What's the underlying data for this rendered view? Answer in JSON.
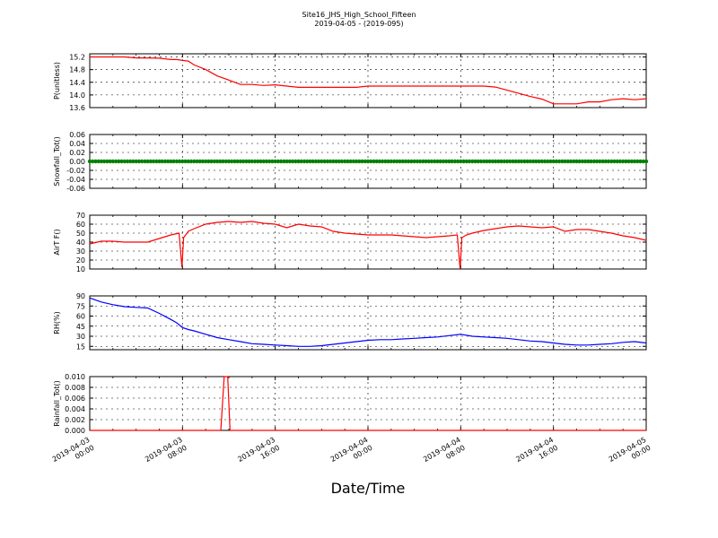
{
  "figure": {
    "title": "Site16_JHS_High_School_Fifteen",
    "subtitle": "2019-04-05 - (2019-095)",
    "xlabel": "Date/Time",
    "x_ticks": [
      "2019-04-03\n00:00",
      "2019-04-03\n08:00",
      "2019-04-03\n16:00",
      "2019-04-04\n00:00",
      "2019-04-04\n08:00",
      "2019-04-04\n16:00",
      "2019-04-05\n00:00"
    ]
  },
  "chart_data": [
    {
      "type": "line",
      "ylabel": "P(unitless)",
      "color": "#ff0000",
      "ylim": [
        13.6,
        15.3
      ],
      "yticks": [
        "13.6",
        "14.0",
        "14.4",
        "14.8",
        "15.2"
      ],
      "x_hours": [
        0,
        1,
        2,
        3,
        4,
        5,
        6,
        7,
        7.5,
        8,
        8.5,
        9,
        10,
        11,
        12,
        13,
        14,
        15,
        16,
        17,
        18,
        19,
        20,
        21,
        22,
        23,
        24,
        25,
        26,
        27,
        28,
        29,
        30,
        31,
        32,
        33,
        34,
        35,
        36,
        37,
        38,
        39,
        40,
        41,
        42,
        43,
        44,
        45,
        46,
        47,
        48
      ],
      "values": [
        15.2,
        15.2,
        15.2,
        15.2,
        15.17,
        15.17,
        15.16,
        15.12,
        15.12,
        15.09,
        15.07,
        14.95,
        14.8,
        14.6,
        14.47,
        14.33,
        14.33,
        14.3,
        14.32,
        14.28,
        14.24,
        14.24,
        14.24,
        14.24,
        14.24,
        14.24,
        14.28,
        14.28,
        14.28,
        14.28,
        14.28,
        14.28,
        14.28,
        14.28,
        14.28,
        14.28,
        14.28,
        14.25,
        14.15,
        14.05,
        13.95,
        13.87,
        13.72,
        13.72,
        13.72,
        13.78,
        13.78,
        13.85,
        13.88,
        13.85,
        13.88
      ]
    },
    {
      "type": "line",
      "ylabel": "Snowfall_Tot()",
      "color": "#008000",
      "ylim": [
        -0.06,
        0.06
      ],
      "yticks": [
        "-0.06",
        "-0.04",
        "-0.02",
        "0.00",
        "0.02",
        "0.04",
        "0.06"
      ],
      "x_hours": [
        0,
        48
      ],
      "values": [
        0,
        0
      ],
      "marker": "dots"
    },
    {
      "type": "line",
      "ylabel": "AirT F()",
      "color": "#ff0000",
      "ylim": [
        10,
        70
      ],
      "yticks": [
        "10",
        "20",
        "30",
        "40",
        "50",
        "60",
        "70"
      ],
      "x_hours": [
        0,
        1,
        2,
        3,
        4,
        5,
        6,
        7,
        7.7,
        7.95,
        8.1,
        8.5,
        9,
        10,
        11,
        12,
        13,
        14,
        15,
        16,
        17,
        18,
        19,
        20,
        21,
        22,
        23,
        24,
        25,
        26,
        27,
        28,
        29,
        30,
        31,
        31.7,
        31.95,
        32.1,
        32.5,
        33,
        34,
        35,
        36,
        37,
        38,
        39,
        40,
        41,
        42,
        43,
        44,
        45,
        46,
        47,
        48
      ],
      "values": [
        38,
        41,
        41,
        40,
        40,
        40,
        44,
        48,
        50,
        12,
        45,
        52,
        55,
        60,
        62,
        63,
        62,
        63,
        61,
        60,
        56,
        60,
        58,
        57,
        52,
        50,
        49,
        48,
        48,
        48,
        47,
        46,
        45,
        46,
        47,
        48,
        10,
        45,
        48,
        50,
        53,
        55,
        57,
        58,
        57,
        56,
        57,
        52,
        54,
        54,
        52,
        50,
        47,
        45,
        42
      ]
    },
    {
      "type": "line",
      "ylabel": "RH(%)",
      "color": "#0000ff",
      "ylim": [
        10,
        90
      ],
      "yticks": [
        "15",
        "30",
        "45",
        "60",
        "75",
        "90"
      ],
      "x_hours": [
        0,
        1,
        2,
        3,
        4,
        5,
        6,
        7,
        7.5,
        8,
        8.5,
        9,
        10,
        11,
        12,
        13,
        14,
        15,
        16,
        17,
        18,
        19,
        20,
        21,
        22,
        23,
        24,
        25,
        26,
        27,
        28,
        29,
        30,
        31,
        32,
        33,
        34,
        35,
        36,
        37,
        38,
        39,
        40,
        41,
        42,
        43,
        44,
        45,
        46,
        47,
        48
      ],
      "values": [
        87,
        81,
        77,
        74,
        73,
        72,
        64,
        55,
        50,
        43,
        40,
        38,
        33,
        28,
        25,
        22,
        19,
        18,
        17,
        16,
        15,
        15,
        16,
        18,
        20,
        22,
        24,
        25,
        25,
        26,
        27,
        28,
        29,
        31,
        33,
        30,
        29,
        28,
        27,
        25,
        23,
        22,
        20,
        18,
        17,
        17,
        18,
        19,
        21,
        22,
        20
      ]
    },
    {
      "type": "line",
      "ylabel": "Rainfall_Tot()",
      "color": "#ff0000",
      "ylim": [
        0,
        0.01
      ],
      "yticks": [
        "0.000",
        "0.002",
        "0.004",
        "0.006",
        "0.008",
        "0.010"
      ],
      "x_hours": [
        0,
        11.3,
        11.6,
        11.9,
        12.1,
        48
      ],
      "values": [
        0,
        0,
        0.01,
        0.01,
        0,
        0
      ]
    }
  ]
}
